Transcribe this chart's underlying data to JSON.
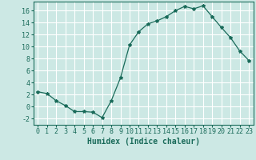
{
  "x": [
    0,
    1,
    2,
    3,
    4,
    5,
    6,
    7,
    8,
    9,
    10,
    11,
    12,
    13,
    14,
    15,
    16,
    17,
    18,
    19,
    20,
    21,
    22,
    23
  ],
  "y": [
    2.5,
    2.2,
    1.0,
    0.2,
    -0.8,
    -0.8,
    -0.9,
    -1.8,
    1.0,
    4.8,
    10.3,
    12.5,
    13.8,
    14.3,
    15.0,
    16.0,
    16.7,
    16.3,
    16.8,
    15.0,
    13.2,
    11.5,
    9.3,
    7.7
  ],
  "line_color": "#1a6b5a",
  "marker": "*",
  "marker_size": 3,
  "bg_color": "#cce8e4",
  "grid_color": "#ffffff",
  "xlabel": "Humidex (Indice chaleur)",
  "ylim": [
    -3,
    17.5
  ],
  "xlim": [
    -0.5,
    23.5
  ],
  "yticks": [
    -2,
    0,
    2,
    4,
    6,
    8,
    10,
    12,
    14,
    16
  ],
  "xticks": [
    0,
    1,
    2,
    3,
    4,
    5,
    6,
    7,
    8,
    9,
    10,
    11,
    12,
    13,
    14,
    15,
    16,
    17,
    18,
    19,
    20,
    21,
    22,
    23
  ],
  "xlabel_fontsize": 7,
  "tick_fontsize": 6
}
